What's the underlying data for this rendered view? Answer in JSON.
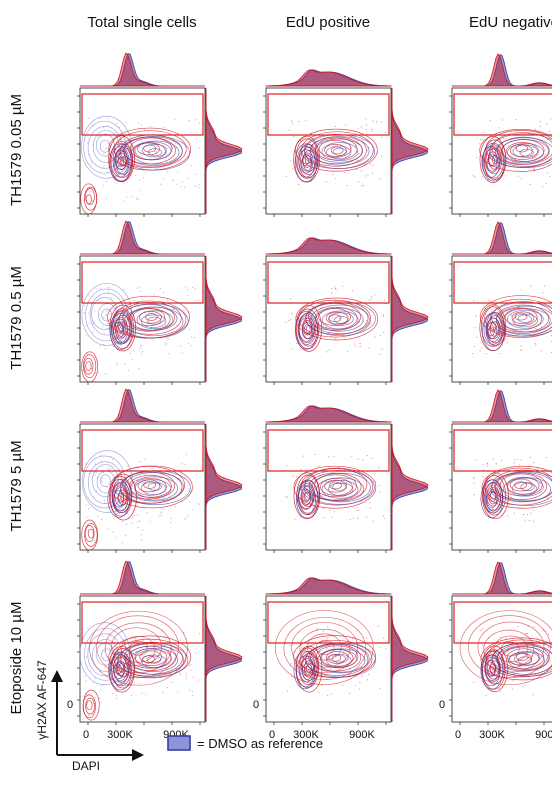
{
  "chart_data": {
    "type": "contour",
    "columns": [
      "Total single cells",
      "EdU positive",
      "EdU negative"
    ],
    "rows": [
      "TH1579 0.05 µM",
      "TH1579 0.5 µM",
      "TH1579 5 µM",
      "Etoposide 10 µM"
    ],
    "x_axis": {
      "label": "DAPI",
      "ticks": [
        "0",
        "300K",
        "900K"
      ]
    },
    "y_axis": {
      "label": "γH2AX AF-647",
      "ticks": [
        "0"
      ]
    },
    "legend": {
      "text": "= DMSO as reference",
      "color": "#5a5fb8"
    },
    "colors": {
      "treated": "#d0121b",
      "reference": "#3a3fa8",
      "gate": "#e02020"
    }
  }
}
